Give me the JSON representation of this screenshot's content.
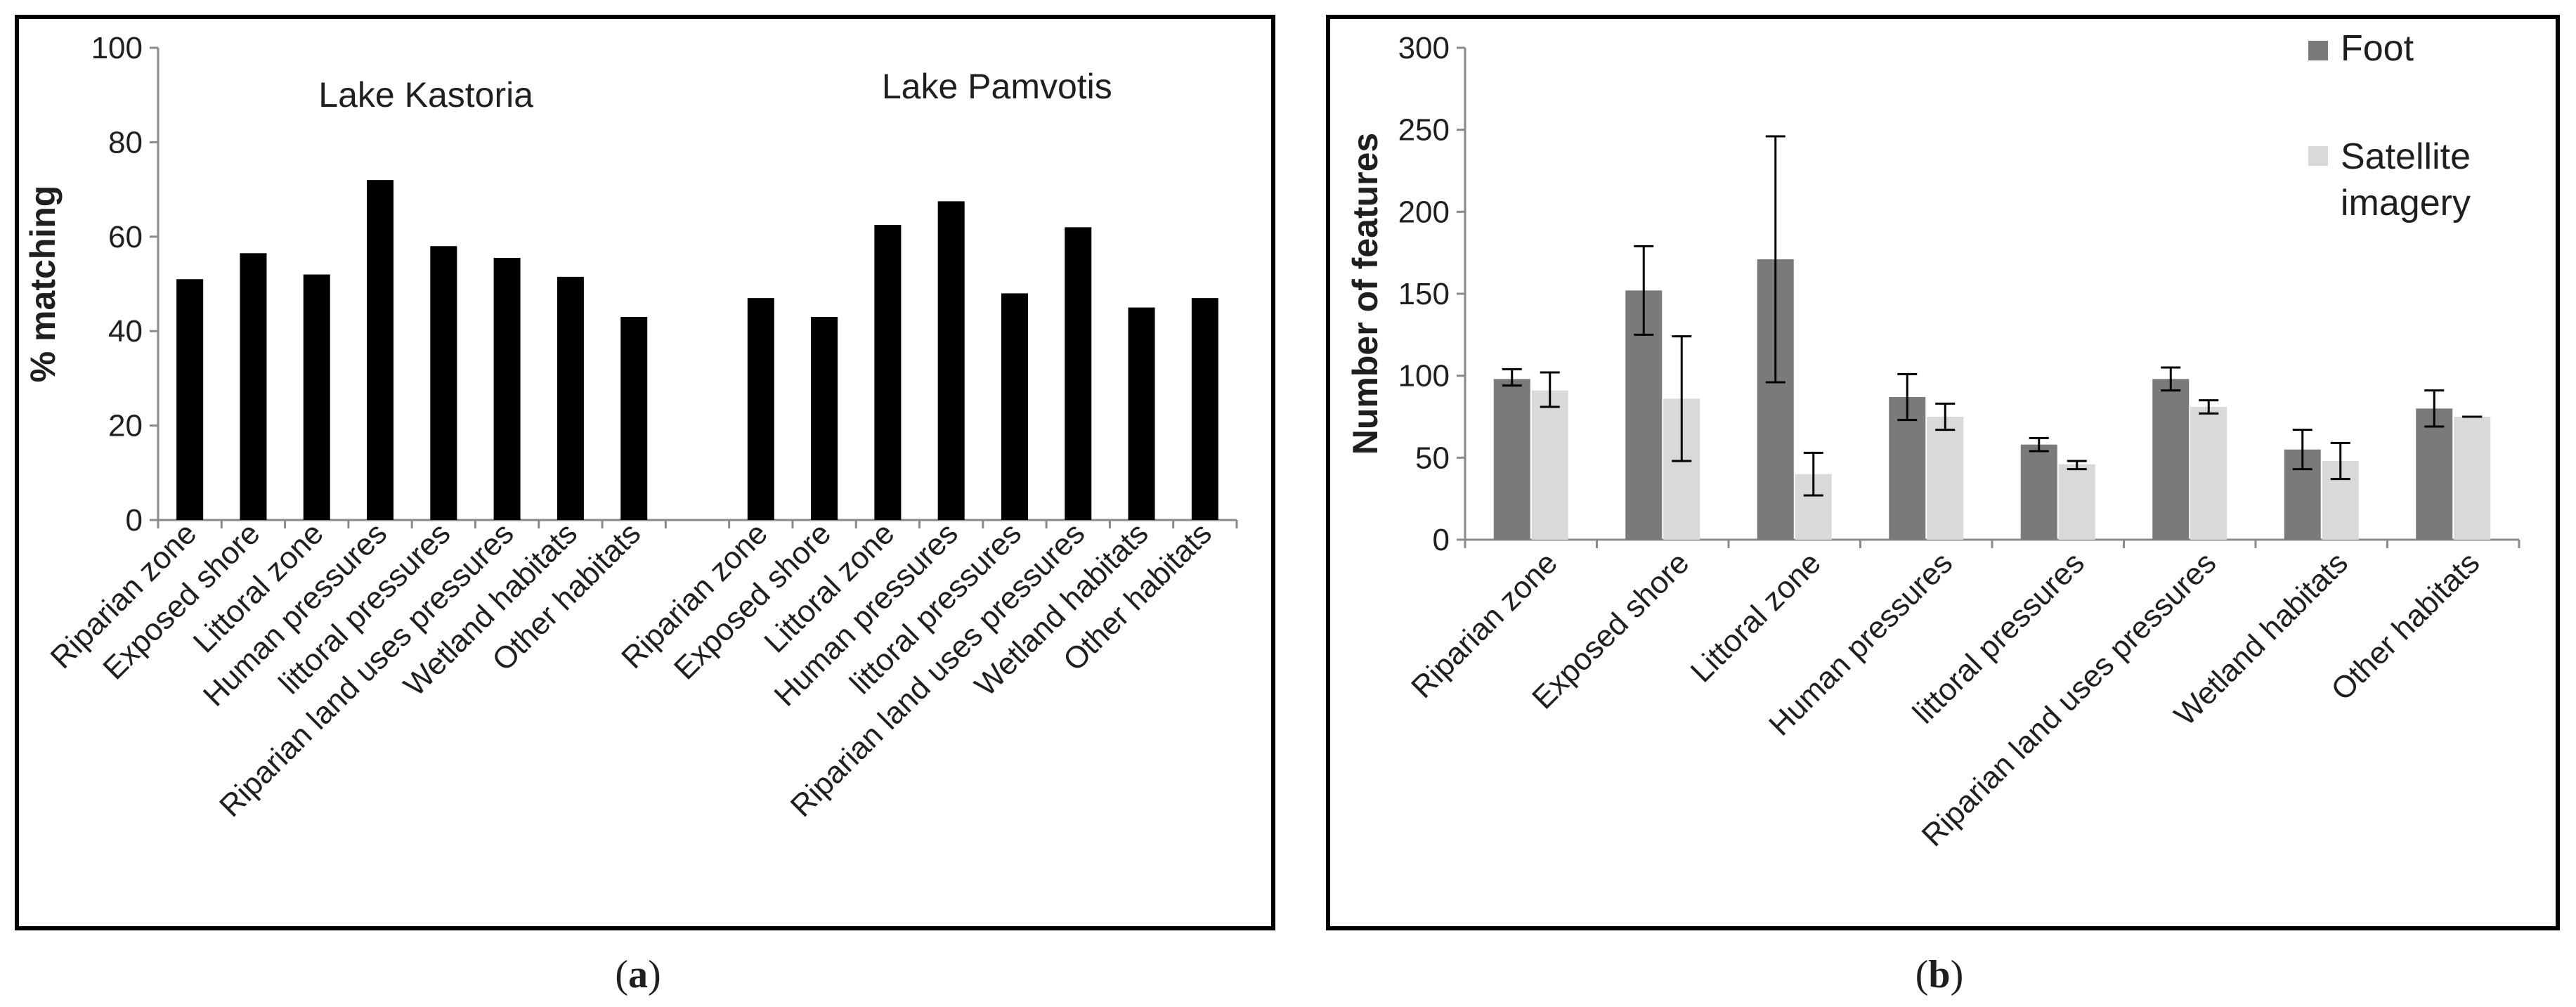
{
  "panel_a": {
    "caption_open": "(",
    "caption_letter": "a",
    "caption_close": ")"
  },
  "panel_b": {
    "caption_open": "(",
    "caption_letter": "b",
    "caption_close": ")"
  },
  "colors": {
    "bar_a": "#000000",
    "foot": "#7a7a7a",
    "satellite": "#d9d9d9",
    "axis": "#8a8a8a",
    "frame": "#000000"
  },
  "chart_data": [
    {
      "type": "bar",
      "ylabel": "% matching",
      "xlabel": "",
      "ylim": [
        0,
        100
      ],
      "yticks": [
        0,
        20,
        40,
        60,
        80,
        100
      ],
      "grid": false,
      "groups": [
        {
          "name": "Lake Kastoria",
          "categories": [
            "Riparian zone",
            "Exposed shore",
            "Littoral zone",
            "Human pressures",
            "littoral pressures",
            "Riparian land uses pressures",
            "Wetland habitats",
            "Other habitats"
          ],
          "values": [
            51,
            56.5,
            52,
            72,
            58,
            55.5,
            51.5,
            43
          ]
        },
        {
          "name": "Lake Pamvotis",
          "categories": [
            "Riparian zone",
            "Exposed shore",
            "Littoral zone",
            "Human pressures",
            "littoral pressures",
            "Riparian land uses pressures",
            "Wetland habitats",
            "Other habitats"
          ],
          "values": [
            47,
            43,
            62.5,
            67.5,
            48,
            62,
            45,
            47
          ]
        }
      ]
    },
    {
      "type": "bar",
      "ylabel": "Number of features",
      "xlabel": "",
      "ylim": [
        0,
        300
      ],
      "yticks": [
        0,
        50,
        100,
        150,
        200,
        250,
        300
      ],
      "grid": false,
      "legend_placement": "top-right",
      "categories": [
        "Riparian zone",
        "Exposed shore",
        "Littoral zone",
        "Human pressures",
        "littoral pressures",
        "Riparian land uses pressures",
        "Wetland habitats",
        "Other habitats"
      ],
      "series": [
        {
          "name": "Foot",
          "values": [
            98,
            152,
            171,
            87,
            58,
            98,
            55,
            80
          ],
          "error_low": [
            94,
            125,
            96,
            73,
            54,
            91,
            43,
            69
          ],
          "error_high": [
            104,
            179,
            246,
            101,
            62,
            105,
            67,
            91
          ]
        },
        {
          "name": "Satellite imagery",
          "values": [
            91,
            86,
            40,
            75,
            46,
            81,
            48,
            75
          ],
          "error_low": [
            81,
            48,
            27,
            67,
            43,
            77,
            37,
            75
          ],
          "error_high": [
            102,
            124,
            53,
            83,
            48,
            85,
            59,
            75
          ]
        }
      ]
    }
  ]
}
